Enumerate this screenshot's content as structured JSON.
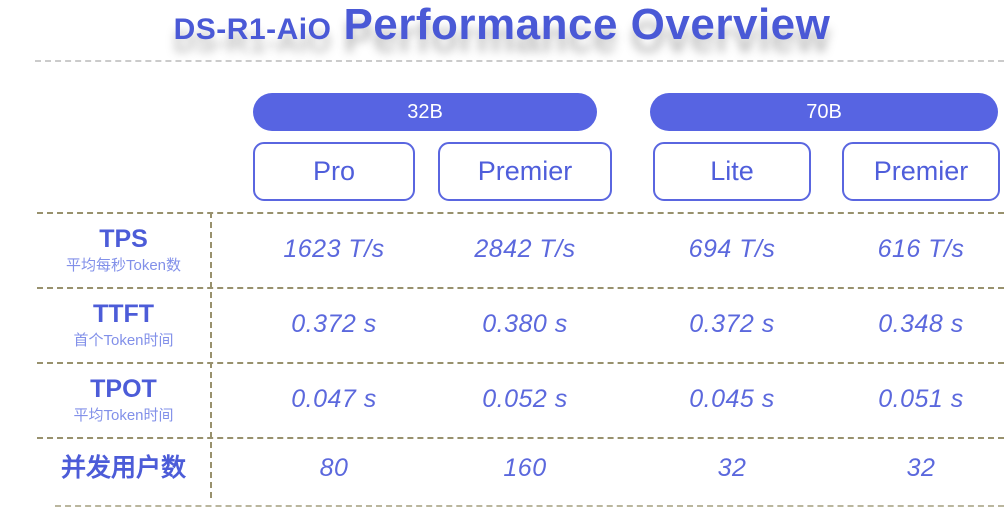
{
  "title": {
    "prefix": "DS-R1-AiO",
    "main": "Performance Overview"
  },
  "groups": [
    {
      "label": "32B"
    },
    {
      "label": "70B"
    }
  ],
  "variants": [
    {
      "label": "Pro"
    },
    {
      "label": "Premier"
    },
    {
      "label": "Lite"
    },
    {
      "label": "Premier"
    }
  ],
  "rows": [
    {
      "metric": "TPS",
      "subtitle": "平均每秒Token数",
      "values": [
        "1623 T/s",
        "2842 T/s",
        "694 T/s",
        "616 T/s"
      ]
    },
    {
      "metric": "TTFT",
      "subtitle": "首个Token时间",
      "values": [
        "0.372 s",
        "0.380 s",
        "0.372 s",
        "0.348 s"
      ]
    },
    {
      "metric": "TPOT",
      "subtitle": "平均Token时间",
      "values": [
        "0.047 s",
        "0.052 s",
        "0.045 s",
        "0.051 s"
      ]
    },
    {
      "metric": "并发用户数",
      "subtitle": "",
      "values": [
        "80",
        "160",
        "32",
        "32"
      ]
    }
  ],
  "colors": {
    "title_blue": "#4a59d6",
    "pill_blue": "#5764e2",
    "box_border_blue": "#5a66e0",
    "value_blue": "#5b68dd",
    "subtitle_blue": "#8290e9",
    "dash_olive": "#98916d",
    "dash_gray": "#cbcbcb"
  },
  "chart_data": {
    "type": "table",
    "title": "DS-R1-AiO Performance Overview",
    "column_groups": [
      {
        "label": "32B",
        "columns": [
          "Pro",
          "Premier"
        ]
      },
      {
        "label": "70B",
        "columns": [
          "Lite",
          "Premier"
        ]
      }
    ],
    "rows": [
      {
        "metric": "TPS",
        "description": "平均每秒Token数",
        "values": [
          "1623 T/s",
          "2842 T/s",
          "694 T/s",
          "616 T/s"
        ]
      },
      {
        "metric": "TTFT",
        "description": "首个Token时间",
        "values": [
          "0.372 s",
          "0.380 s",
          "0.372 s",
          "0.348 s"
        ]
      },
      {
        "metric": "TPOT",
        "description": "平均Token时间",
        "values": [
          "0.047 s",
          "0.052 s",
          "0.045 s",
          "0.051 s"
        ]
      },
      {
        "metric": "并发用户数",
        "description": "",
        "values": [
          "80",
          "160",
          "32",
          "32"
        ]
      }
    ]
  }
}
